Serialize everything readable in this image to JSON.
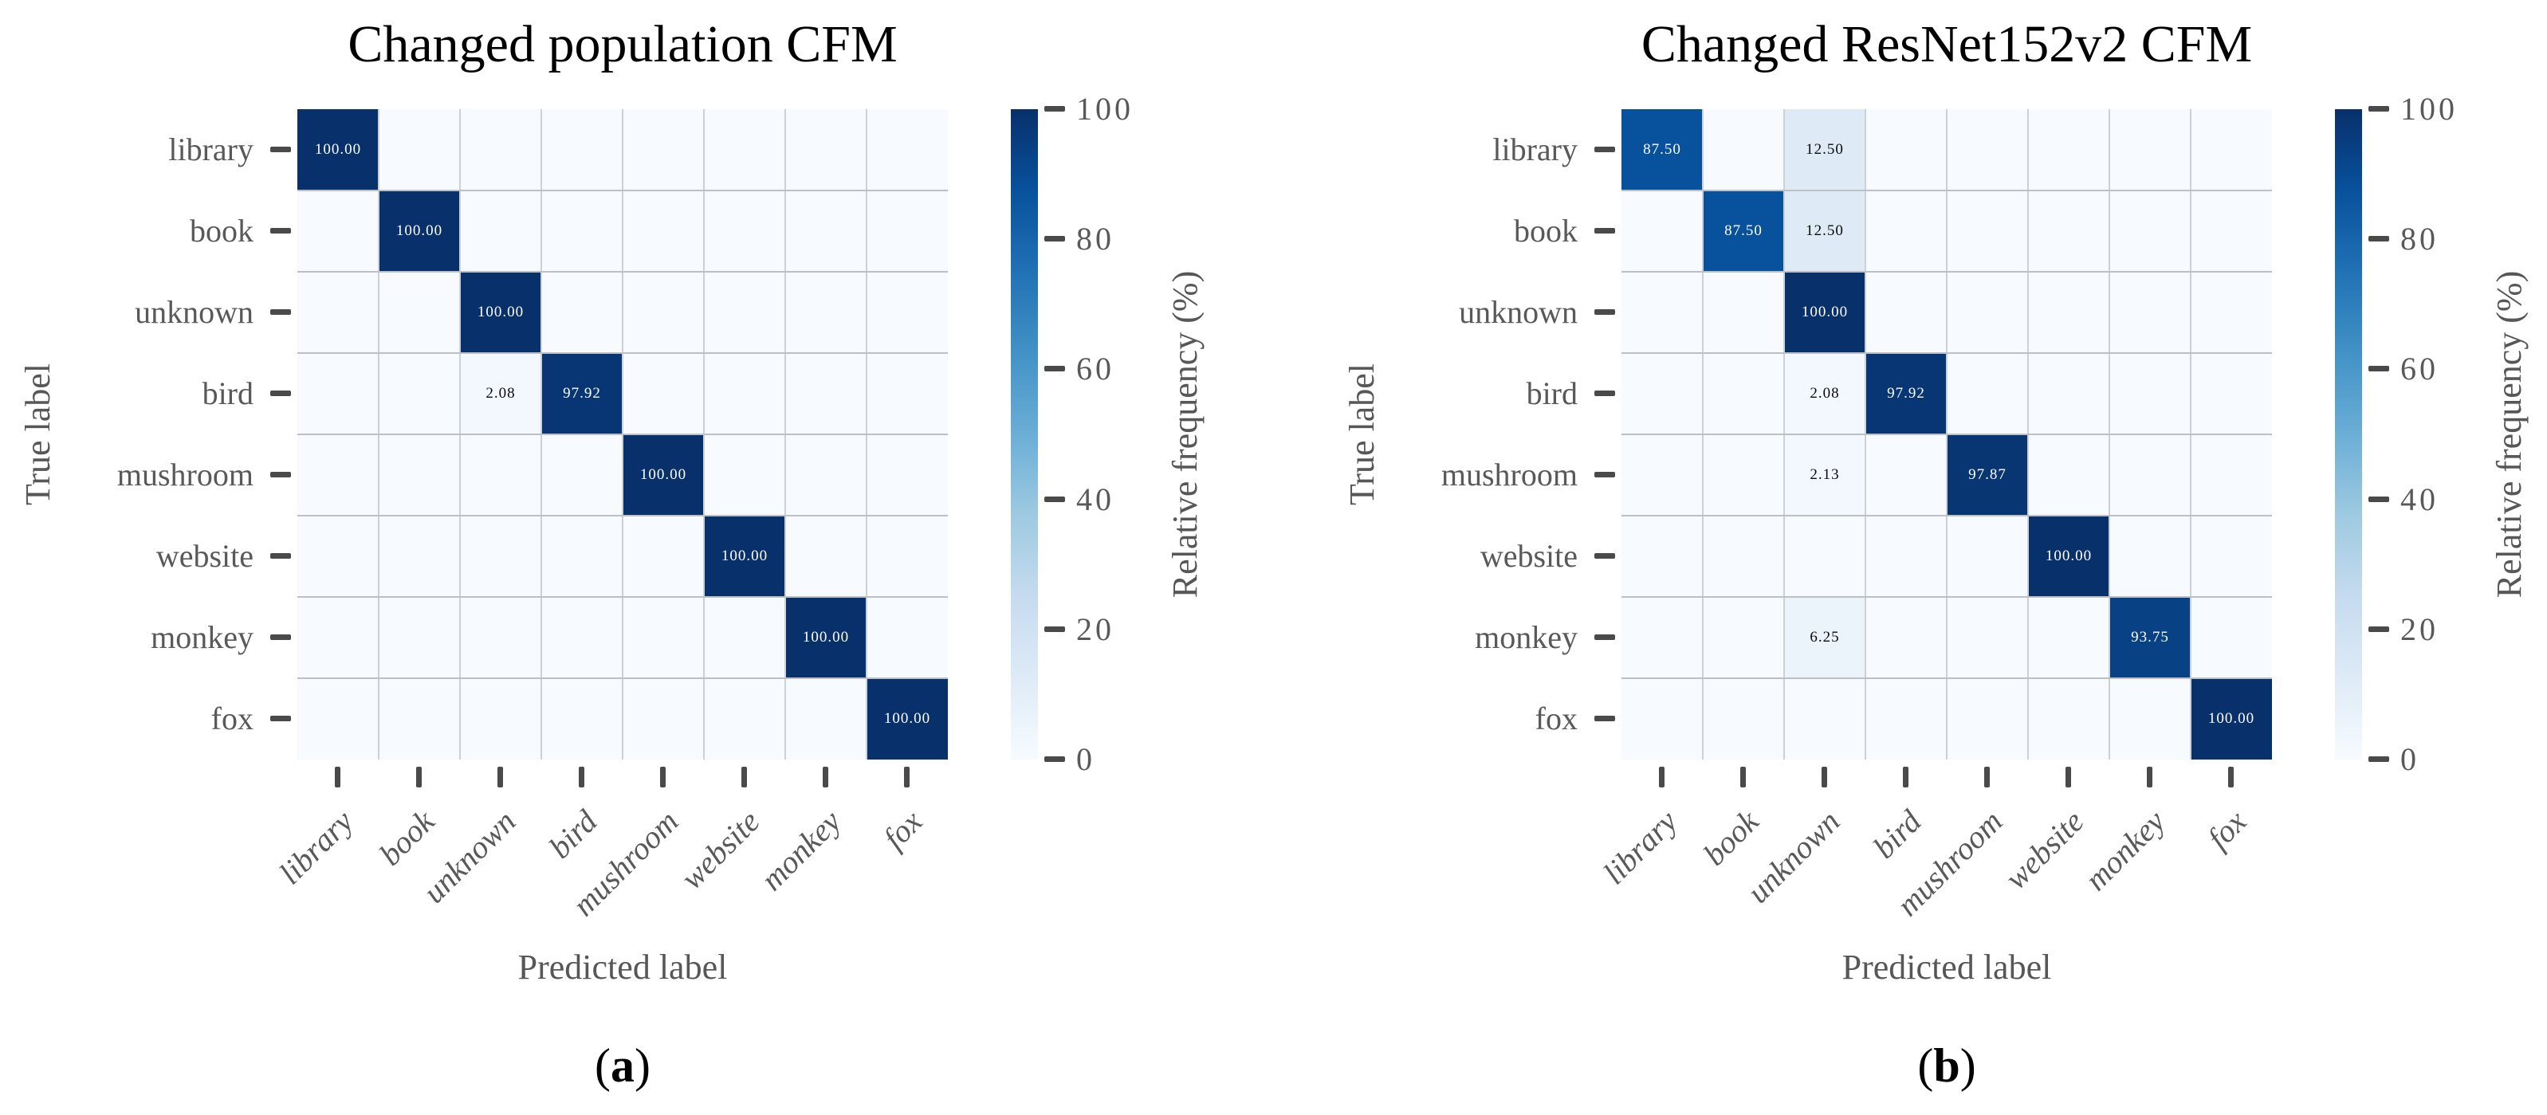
{
  "figure": {
    "title_color": "#000000",
    "label_color": "#575757",
    "tick_label_color": "#595959",
    "tick_mark_color": "#4a4a4a",
    "annotation_text_light": "#ffffff",
    "annotation_text_dark": "#0a0a0a",
    "grid_h_color": "#bcc0c4",
    "grid_v_color": "#ccd1d5",
    "background_color": "#ffffff",
    "colormap": {
      "name": "Blues",
      "stops": [
        "#f7fbff",
        "#deebf7",
        "#c6dbef",
        "#9ecae1",
        "#6baed6",
        "#4292c6",
        "#2171b5",
        "#08519c",
        "#08306b"
      ]
    }
  },
  "chart_data": [
    {
      "type": "heatmap",
      "title": "Changed population CFM",
      "caption": "(a)",
      "xlabel": "Predicted label",
      "ylabel": "True label",
      "colorbar_label": "Relative frequency (%)",
      "colorbar_ticks": [
        0,
        20,
        40,
        60,
        80,
        100
      ],
      "value_range": [
        0,
        100
      ],
      "annotate_nonzero_only": true,
      "annotation_decimals": 2,
      "categories": [
        "library",
        "book",
        "unknown",
        "bird",
        "mushroom",
        "website",
        "monkey",
        "fox"
      ],
      "matrix": [
        [
          100.0,
          0,
          0,
          0,
          0,
          0,
          0,
          0
        ],
        [
          0,
          100.0,
          0,
          0,
          0,
          0,
          0,
          0
        ],
        [
          0,
          0,
          100.0,
          0,
          0,
          0,
          0,
          0
        ],
        [
          0,
          0,
          2.08,
          97.92,
          0,
          0,
          0,
          0
        ],
        [
          0,
          0,
          0,
          0,
          100.0,
          0,
          0,
          0
        ],
        [
          0,
          0,
          0,
          0,
          0,
          100.0,
          0,
          0
        ],
        [
          0,
          0,
          0,
          0,
          0,
          0,
          100.0,
          0
        ],
        [
          0,
          0,
          0,
          0,
          0,
          0,
          0,
          100.0
        ]
      ]
    },
    {
      "type": "heatmap",
      "title": "Changed ResNet152v2 CFM",
      "caption": "(b)",
      "xlabel": "Predicted label",
      "ylabel": "True label",
      "colorbar_label": "Relative frequency (%)",
      "colorbar_ticks": [
        0,
        20,
        40,
        60,
        80,
        100
      ],
      "value_range": [
        0,
        100
      ],
      "annotate_nonzero_only": true,
      "annotation_decimals": 2,
      "categories": [
        "library",
        "book",
        "unknown",
        "bird",
        "mushroom",
        "website",
        "monkey",
        "fox"
      ],
      "matrix": [
        [
          87.5,
          0,
          12.5,
          0,
          0,
          0,
          0,
          0
        ],
        [
          0,
          87.5,
          12.5,
          0,
          0,
          0,
          0,
          0
        ],
        [
          0,
          0,
          100.0,
          0,
          0,
          0,
          0,
          0
        ],
        [
          0,
          0,
          2.08,
          97.92,
          0,
          0,
          0,
          0
        ],
        [
          0,
          0,
          2.13,
          0,
          97.87,
          0,
          0,
          0
        ],
        [
          0,
          0,
          0,
          0,
          0,
          100.0,
          0,
          0
        ],
        [
          0,
          0,
          6.25,
          0,
          0,
          0,
          93.75,
          0
        ],
        [
          0,
          0,
          0,
          0,
          0,
          0,
          0,
          100.0
        ]
      ]
    }
  ]
}
